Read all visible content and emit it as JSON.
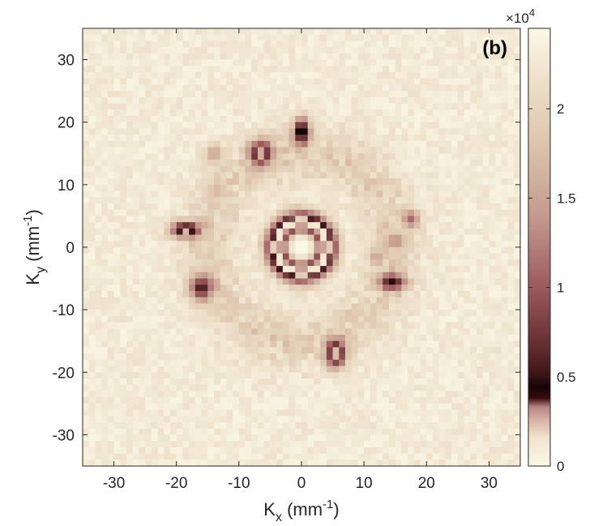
{
  "chart_data": {
    "type": "heatmap",
    "panel_label": "(b)",
    "xlabel": {
      "main": "K",
      "sub": "x",
      "unit_open": " (mm",
      "unit_exp": "-1",
      "unit_close": ")"
    },
    "ylabel": {
      "main": "K",
      "sub": "y",
      "unit_open": " (mm",
      "unit_exp": "-1",
      "unit_close": ")"
    },
    "xlim": [
      -35,
      35
    ],
    "ylim": [
      -35,
      35
    ],
    "xticks": [
      -30,
      -20,
      -10,
      0,
      10,
      20,
      30
    ],
    "yticks": [
      -30,
      -20,
      -10,
      0,
      10,
      20,
      30
    ],
    "grid_resolution_mm_inv": 1,
    "background_level": 24000,
    "features": [
      {
        "name": "central ring",
        "shape": "ring",
        "kx": 0,
        "ky": 0,
        "radius": 4,
        "width": 1.3,
        "level": 0
      },
      {
        "name": "center hole",
        "shape": "spot",
        "kx": 0,
        "ky": 0,
        "sx": 1.5,
        "sy": 1.5,
        "level": 25000
      },
      {
        "name": "peak",
        "shape": "spot",
        "kx": 0,
        "ky": 18.5,
        "sx": 0.9,
        "sy": 1.5,
        "level": 1500
      },
      {
        "name": "peak",
        "shape": "spot",
        "kx": -6.5,
        "ky": 15,
        "sx": 1.2,
        "sy": 1.4,
        "level": 1500
      },
      {
        "name": "peak",
        "shape": "spot",
        "kx": -18.5,
        "ky": 2.8,
        "sx": 1.7,
        "sy": 0.9,
        "level": 1500
      },
      {
        "name": "peak",
        "shape": "spot",
        "kx": -16,
        "ky": -6.5,
        "sx": 1.3,
        "sy": 1.4,
        "level": 5000
      },
      {
        "name": "peak",
        "shape": "spot",
        "kx": 14.5,
        "ky": -5.5,
        "sx": 1.5,
        "sy": 0.9,
        "level": 4000
      },
      {
        "name": "peak",
        "shape": "spot",
        "kx": 17.5,
        "ky": 4.5,
        "sx": 1.0,
        "sy": 1.0,
        "level": 11000
      },
      {
        "name": "peak",
        "shape": "spot",
        "kx": 15,
        "ky": 1,
        "sx": 1.0,
        "sy": 0.8,
        "level": 13000
      },
      {
        "name": "peak",
        "shape": "spot",
        "kx": 12,
        "ky": -1.5,
        "sx": 1.0,
        "sy": 0.8,
        "level": 15000
      },
      {
        "name": "peak",
        "shape": "spot",
        "kx": 5.5,
        "ky": -17,
        "sx": 1.1,
        "sy": 1.6,
        "level": 1500
      },
      {
        "name": "peak",
        "shape": "spot",
        "kx": -14,
        "ky": 15,
        "sx": 1.0,
        "sy": 1.0,
        "level": 15000
      },
      {
        "name": "peak",
        "shape": "spot",
        "kx": -13.5,
        "ky": 9,
        "sx": 1.0,
        "sy": 1.0,
        "level": 17000
      }
    ],
    "colorbar": {
      "multiplier": "×10",
      "multiplier_exp": "4",
      "range": [
        0,
        24500
      ],
      "ticks": [
        {
          "value": 0,
          "label": "0"
        },
        {
          "value": 5000,
          "label": "0.5"
        },
        {
          "value": 10000,
          "label": "1"
        },
        {
          "value": 15000,
          "label": "1.5"
        },
        {
          "value": 20000,
          "label": "2"
        }
      ],
      "colormap": [
        {
          "value": 0,
          "color": "#fbf8e4"
        },
        {
          "value": 1600,
          "color": "#f1e3cd"
        },
        {
          "value": 2600,
          "color": "#d8b2a4"
        },
        {
          "value": 3300,
          "color": "#b38683"
        },
        {
          "value": 3800,
          "color": "#3a0c10"
        },
        {
          "value": 4400,
          "color": "#160405"
        },
        {
          "value": 5200,
          "color": "#3f1518"
        },
        {
          "value": 6500,
          "color": "#5e2b2e"
        },
        {
          "value": 10000,
          "color": "#9b5a5c"
        },
        {
          "value": 14000,
          "color": "#c49a8e"
        },
        {
          "value": 18000,
          "color": "#ddc4ad"
        },
        {
          "value": 22000,
          "color": "#efe3cd"
        },
        {
          "value": 24500,
          "color": "#fbf8e6"
        }
      ]
    }
  }
}
